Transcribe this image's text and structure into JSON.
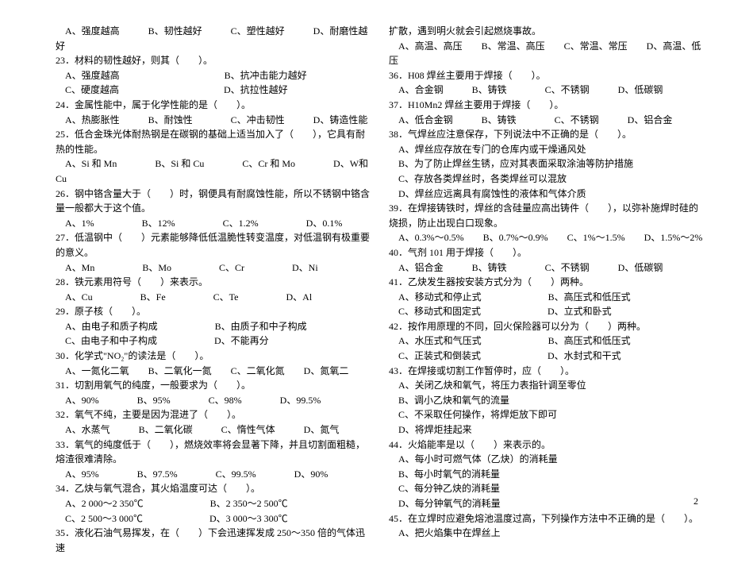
{
  "typography": {
    "font_family": "SimSun",
    "font_size_pt": 10,
    "line_height": 1.55,
    "color": "#000000",
    "background": "#ffffff"
  },
  "page_number": "2",
  "col1": [
    "　A、强度越高　　　B、韧性越好　　　C、塑性越好　　　D、耐磨性越好",
    "23．材料的韧性越好，则其（　　）。",
    "　A、强度越高　　　　　　　　　　　B、抗冲击能力越好",
    "　C、硬度越高　　　　　　　　　　　D、抗拉性越好",
    "24．金属性能中，属于化学性能的是（　　）。",
    "　A、热膨胀性　　　B、耐蚀性　　　　C、冲击韧性　　　D、铸造性能",
    "25．低合金珠光体耐热钢是在碳钢的基础上适当加入了（　　），它具有耐热的性能。",
    "　A、Si 和 Mn　　　　B、Si 和 Cu　　　　C、Cr 和 Mo　　　　D、W和 Cu",
    "26．钢中铬含量大于（　　）时，钢便具有耐腐蚀性能，所以不锈钢中铬含量一般都大于这个值。",
    "　A、1%　　　　　B、12%　　　　　C、1.2%　　　　　D、0.1%",
    "27．低温钢中（　　）元素能够降低低温脆性转变温度，对低温钢有极重要的意义。",
    "　A、Mn　　　　　B、Mo　　　　　C、Cr　　　　　D、Ni",
    "28．铁元素用符号（　　）来表示。",
    "　A、Cu　　　　　B、Fe　　　　　C、Te　　　　　D、Al",
    "29．原子核（　　）。",
    "　A、由电子和质子构成　　　　　　B、由质子和中子构成",
    "　C、由电子和中子构成　　　　　　D、不能再分",
    "30．化学式\"NO₂\"的读法是（　　）。",
    "　A、一氮化二氧　　B、二氧化一氮　　C、二氧化氮　　D、氮氧二",
    "31．切割用氧气的纯度，一般要求为（　　）。",
    "　A、90%　　　　B、95%　　　　C、98%　　　　D、99.5%",
    "32．氧气不纯，主要是因为混进了（　　）。",
    "　A、水蒸气　　　B、二氧化碳　　　C、惰性气体　　　D、氮气",
    "33．氧气的纯度低于（　　），燃烧效率将会显著下降，并且切割面粗糙，熔渣很难清除。",
    "　A、95%　　　　B、97.5%　　　　C、99.5%　　　　D、90%",
    "34．乙炔与氧气混合，其火焰温度可达（　　）。",
    "　A、2 000～2 350℃　　　　　　　B、2 350～2 500℃",
    "　C、2 500～3 000℃　　　　　　　D、3 000～3 300℃",
    "35．液化石油气易挥发，在（　　）下会迅速挥发成 250～350 倍的气体迅速"
  ],
  "col2": [
    "扩散，遇到明火就会引起燃烧事故。",
    "　A、高温、高压　　B、常温、高压　　C、常温、常压　　D、高温、低压",
    "36．H08 焊丝主要用于焊接（　　）。",
    "　A、合金钢　　　B、铸铁　　　　C、不锈钢　　　D、低碳钢",
    "37．H10Mn2 焊丝主要用于焊接（　　）。",
    "　A、低合金钢　　　B、铸铁　　　　C、不锈钢　　　D、铝合金",
    "38．气焊丝应注意保存，下列说法中不正确的是（　　）。",
    "　A、焊丝应存放在专门的仓库内或干燥通风处",
    "　B、为了防止焊丝生锈，应对其表面采取涂油等防护措施",
    "　C、存放各类焊丝时，各类焊丝可以混放",
    "　D、焊丝应远离具有腐蚀性的液体和气体介质",
    "39．在焊接铸铁时，焊丝的含硅量应高出铸件（　　），以弥补施焊时硅的烧损，防止出现白口现象。",
    "　A、0.3%～0.5%　　B、0.7%～0.9%　　C、1%～1.5%　　D、1.5%～2%",
    "40．气剂 101 用于焊接（　　）。",
    "　A、铝合金　　　B、铸铁　　　　C、不锈钢　　　D、低碳钢",
    "41．乙炔发生器按安装方式分为（　　）两种。",
    "　A、移动式和停止式　　　　　　　B、高压式和低压式",
    "　C、移动式和固定式　　　　　　　D、立式和卧式",
    "42．按作用原理的不同，回火保险器可以分为（　　）两种。",
    "　A、水压式和气压式　　　　　　　B、高压式和低压式",
    "　C、正装式和倒装式　　　　　　　D、水封式和干式",
    "43．在焊接或切割工作暂停时，应（　　）。",
    "　A、关闭乙炔和氧气，将压力表指针调至零位",
    "　B、调小乙炔和氧气的流量",
    "　C、不采取任何操作，将焊炬放下即可",
    "　D、将焊炬挂起来",
    "44．火焰能率是以（　　）来表示的。",
    "　A、每小时可燃气体（乙炔）的消耗量",
    "　B、每小时氧气的消耗量",
    "　C、每分钟乙炔的消耗量",
    "　D、每分钟氧气的消耗量",
    "45．在立焊时应避免熔池温度过高，下列操作方法中不正确的是（　　）。",
    "　A、把火焰集中在焊丝上"
  ]
}
